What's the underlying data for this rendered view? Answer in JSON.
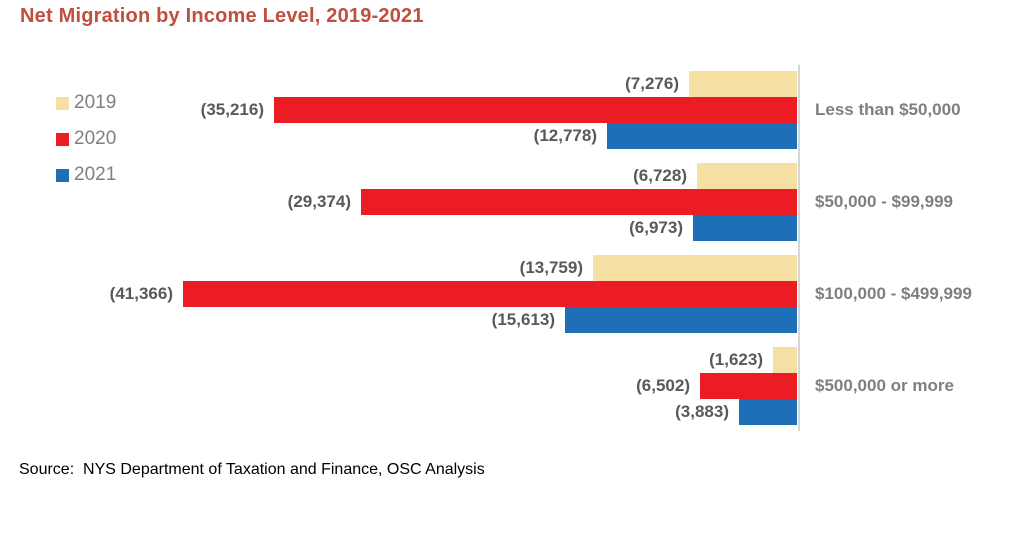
{
  "title": {
    "text": "Net Migration by Income Level, 2019-2021",
    "color": "#C14F3F"
  },
  "legend": [
    {
      "label": "2019",
      "color": "#F6DFA2"
    },
    {
      "label": "2020",
      "color": "#EC1C24"
    },
    {
      "label": "2021",
      "color": "#1D6FB8"
    }
  ],
  "source": "Source:  NYS Department of Taxation and Finance, OSC Analysis",
  "chart_data": {
    "type": "bar",
    "orientation": "horizontal",
    "title": "Net Migration by Income Level, 2019-2021",
    "categories": [
      "Less than $50,000",
      "$50,000 - $99,999",
      "$100,000 - $499,999",
      "$500,000 or more"
    ],
    "series": [
      {
        "name": "2019",
        "color": "#F6DFA2",
        "values": [
          -7276,
          -6728,
          -13759,
          -1623
        ],
        "labels": [
          "(7,276)",
          "(6,728)",
          "(13,759)",
          "(1,623)"
        ]
      },
      {
        "name": "2020",
        "color": "#EC1C24",
        "values": [
          -35216,
          -29374,
          -41366,
          -6502
        ],
        "labels": [
          "(35,216)",
          "(29,374)",
          "(41,366)",
          "(6,502)"
        ]
      },
      {
        "name": "2021",
        "color": "#1D6FB8",
        "values": [
          -12778,
          -6973,
          -15613,
          -3883
        ],
        "labels": [
          "(12,778)",
          "(6,973)",
          "(15,613)",
          "(3,883)"
        ]
      }
    ],
    "xlim": [
      -45000,
      0
    ],
    "grid": false,
    "legend_position": "upper-left",
    "baseline_color": "#D6D6D6",
    "value_label_color": "#595959",
    "category_label_color": "#7F7F7F"
  }
}
